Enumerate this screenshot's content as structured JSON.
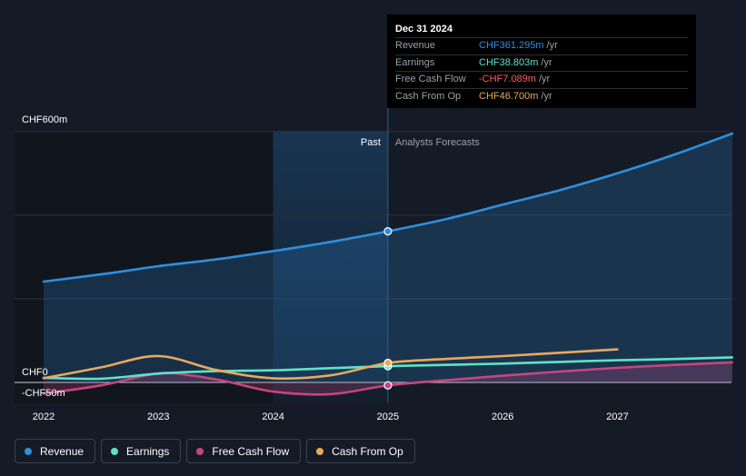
{
  "tooltip": {
    "date": "Dec 31 2024",
    "rows": [
      {
        "name": "Revenue",
        "value": "CHF361.295m",
        "unit": "/yr",
        "color": "#2f8fde"
      },
      {
        "name": "Earnings",
        "value": "CHF38.803m",
        "unit": "/yr",
        "color": "#5ee3c8"
      },
      {
        "name": "Free Cash Flow",
        "value": "-CHF7.089m",
        "unit": "/yr",
        "color": "#ff5d5d"
      },
      {
        "name": "Cash From Op",
        "value": "CHF46.700m",
        "unit": "/yr",
        "color": "#e8a95c"
      }
    ]
  },
  "legend": [
    {
      "label": "Revenue",
      "color": "#2f8fde"
    },
    {
      "label": "Earnings",
      "color": "#5ee3c8"
    },
    {
      "label": "Free Cash Flow",
      "color": "#c6457e"
    },
    {
      "label": "Cash From Op",
      "color": "#e8a95c"
    }
  ],
  "chart_data": {
    "type": "line",
    "title": "",
    "y_axis_labels": [
      "CHF600m",
      "CHF0",
      "-CHF50m"
    ],
    "ylim": [
      -50,
      600
    ],
    "xlim": [
      2022.0,
      2028.0
    ],
    "x_ticks": [
      {
        "value": 2022,
        "label": "2022"
      },
      {
        "value": 2023,
        "label": "2023"
      },
      {
        "value": 2024,
        "label": "2024"
      },
      {
        "value": 2025,
        "label": "2025"
      },
      {
        "value": 2026,
        "label": "2026"
      },
      {
        "value": 2027,
        "label": "2027"
      }
    ],
    "divider_x": 2025.0,
    "highlight_start_x": 2024.0,
    "past_label": "Past",
    "forecast_label": "Analysts Forecasts",
    "marker_x": 2025.0,
    "series": [
      {
        "name": "Revenue",
        "color": "#2f8fde",
        "area": true,
        "points": [
          [
            2022.0,
            241
          ],
          [
            2022.6,
            262
          ],
          [
            2023.0,
            278
          ],
          [
            2023.5,
            294
          ],
          [
            2024.0,
            314
          ],
          [
            2024.5,
            336
          ],
          [
            2025.0,
            361.3
          ],
          [
            2025.5,
            390
          ],
          [
            2026.0,
            425
          ],
          [
            2026.5,
            460
          ],
          [
            2027.0,
            500
          ],
          [
            2027.5,
            545
          ],
          [
            2028.0,
            595
          ]
        ]
      },
      {
        "name": "Earnings",
        "color": "#5ee3c8",
        "area": false,
        "points": [
          [
            2022.0,
            11
          ],
          [
            2022.5,
            9
          ],
          [
            2023.0,
            21
          ],
          [
            2023.5,
            27
          ],
          [
            2024.0,
            29
          ],
          [
            2024.5,
            34
          ],
          [
            2025.0,
            38.8
          ],
          [
            2025.5,
            42
          ],
          [
            2026.0,
            45
          ],
          [
            2026.5,
            49
          ],
          [
            2027.0,
            53
          ],
          [
            2027.5,
            56
          ],
          [
            2028.0,
            60
          ]
        ]
      },
      {
        "name": "Free Cash Flow",
        "color": "#c6457e",
        "area": true,
        "points": [
          [
            2022.0,
            -27
          ],
          [
            2022.5,
            -7
          ],
          [
            2023.0,
            22
          ],
          [
            2023.3,
            16
          ],
          [
            2023.6,
            2
          ],
          [
            2024.0,
            -22
          ],
          [
            2024.5,
            -28
          ],
          [
            2025.0,
            -7.1
          ],
          [
            2025.5,
            5
          ],
          [
            2026.0,
            16
          ],
          [
            2026.5,
            26
          ],
          [
            2027.0,
            35
          ],
          [
            2027.5,
            42
          ],
          [
            2028.0,
            48
          ]
        ]
      },
      {
        "name": "Cash From Op",
        "color": "#e8a95c",
        "area": false,
        "points": [
          [
            2022.0,
            10
          ],
          [
            2022.5,
            36
          ],
          [
            2023.0,
            63
          ],
          [
            2023.5,
            30
          ],
          [
            2024.0,
            10
          ],
          [
            2024.5,
            17
          ],
          [
            2025.0,
            46.7
          ],
          [
            2025.5,
            56
          ],
          [
            2026.0,
            63
          ],
          [
            2026.5,
            71
          ],
          [
            2027.0,
            79
          ]
        ]
      }
    ]
  }
}
